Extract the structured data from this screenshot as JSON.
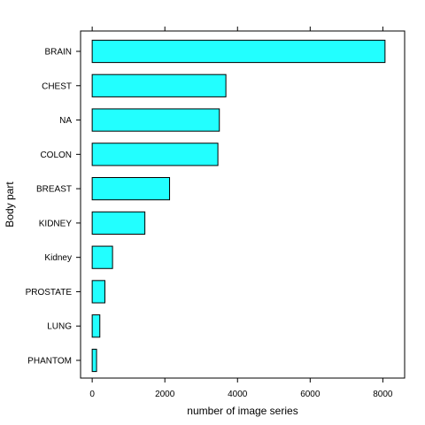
{
  "chart_data": {
    "type": "bar",
    "orientation": "horizontal",
    "title": "",
    "xlabel": "number of image series",
    "ylabel": "Body part",
    "categories": [
      "BRAIN",
      "CHEST",
      "NA",
      "COLON",
      "BREAST",
      "KIDNEY",
      "Kidney",
      "PROSTATE",
      "LUNG",
      "PHANTOM"
    ],
    "values": [
      8060,
      3680,
      3500,
      3460,
      2130,
      1450,
      560,
      350,
      210,
      120
    ],
    "xlim": [
      -320,
      8600
    ],
    "xticks": [
      0,
      2000,
      4000,
      6000,
      8000
    ],
    "grid": false,
    "legend": "none",
    "bar_color": "#22FFFF",
    "bar_edge_color": "#000000"
  }
}
